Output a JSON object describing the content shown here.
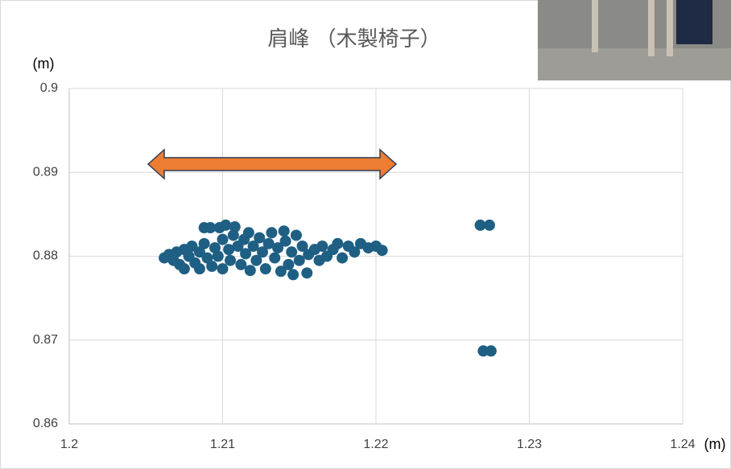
{
  "chart_data": {
    "type": "scatter",
    "title": "肩峰 （木製椅子）",
    "xlabel": "(m)",
    "ylabel": "(m)",
    "color": "#1f5f84",
    "grid": true,
    "xlim": [
      1.2,
      1.24
    ],
    "ylim": [
      0.86,
      0.9
    ],
    "xticks": [
      1.2,
      1.21,
      1.22,
      1.23,
      1.24
    ],
    "yticks": [
      0.86,
      0.87,
      0.88,
      0.89,
      0.9
    ],
    "x": [
      1.2062,
      1.2065,
      1.2068,
      1.207,
      1.2072,
      1.2075,
      1.2075,
      1.2078,
      1.208,
      1.2082,
      1.2085,
      1.2085,
      1.2088,
      1.2088,
      1.209,
      1.2092,
      1.2093,
      1.2095,
      1.2097,
      1.2098,
      1.21,
      1.21,
      1.2102,
      1.2104,
      1.2105,
      1.2107,
      1.2108,
      1.211,
      1.2112,
      1.2114,
      1.2115,
      1.2117,
      1.2118,
      1.212,
      1.2122,
      1.2124,
      1.2126,
      1.2128,
      1.213,
      1.2132,
      1.2134,
      1.2136,
      1.2138,
      1.214,
      1.2141,
      1.2143,
      1.2145,
      1.2146,
      1.2148,
      1.215,
      1.2152,
      1.2155,
      1.2156,
      1.216,
      1.2163,
      1.2165,
      1.2168,
      1.2172,
      1.2175,
      1.2178,
      1.2182,
      1.2186,
      1.219,
      1.2195,
      1.22,
      1.2204,
      1.2268,
      1.2274,
      1.227,
      1.2275
    ],
    "y": [
      0.8798,
      0.8802,
      0.8795,
      0.8805,
      0.879,
      0.8808,
      0.8785,
      0.88,
      0.8812,
      0.8792,
      0.8805,
      0.8785,
      0.8815,
      0.8834,
      0.8798,
      0.8834,
      0.8788,
      0.881,
      0.88,
      0.8834,
      0.882,
      0.8785,
      0.8837,
      0.8808,
      0.8795,
      0.8825,
      0.8835,
      0.8812,
      0.879,
      0.882,
      0.8803,
      0.8828,
      0.8783,
      0.8812,
      0.8795,
      0.8822,
      0.8805,
      0.8785,
      0.8815,
      0.8828,
      0.8798,
      0.881,
      0.8782,
      0.883,
      0.8818,
      0.879,
      0.8805,
      0.8778,
      0.8825,
      0.8795,
      0.8812,
      0.878,
      0.8802,
      0.8808,
      0.8795,
      0.8812,
      0.88,
      0.8808,
      0.8815,
      0.8798,
      0.8812,
      0.8805,
      0.8815,
      0.881,
      0.8812,
      0.8807,
      0.8837,
      0.8837,
      0.8687,
      0.8687
    ]
  }
}
